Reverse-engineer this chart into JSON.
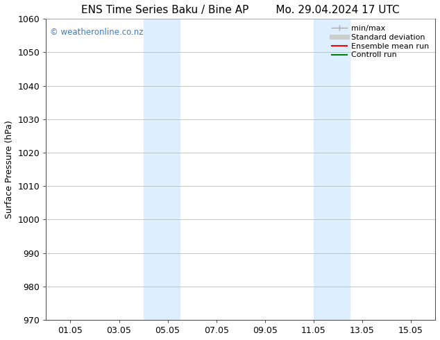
{
  "title": "ENS Time Series Baku / Bine AP        Mo. 29.04.2024 17 UTC",
  "ylabel": "Surface Pressure (hPa)",
  "ylim": [
    970,
    1060
  ],
  "yticks": [
    970,
    980,
    990,
    1000,
    1010,
    1020,
    1030,
    1040,
    1050,
    1060
  ],
  "xtick_labels": [
    "01.05",
    "03.05",
    "05.05",
    "07.05",
    "09.05",
    "11.05",
    "13.05",
    "15.05"
  ],
  "xtick_positions": [
    1,
    3,
    5,
    7,
    9,
    11,
    13,
    15
  ],
  "xlim": [
    0,
    16
  ],
  "shaded_regions": [
    {
      "xmin": 4.0,
      "xmax": 5.5,
      "color": "#ddeeff"
    },
    {
      "xmin": 11.0,
      "xmax": 12.5,
      "color": "#ddeeff"
    }
  ],
  "watermark": "© weatheronline.co.nz",
  "watermark_color": "#3a7dc9",
  "legend_entries": [
    {
      "label": "min/max",
      "color": "#aaaaaa",
      "lw": 1.0
    },
    {
      "label": "Standard deviation",
      "color": "#cccccc",
      "lw": 5
    },
    {
      "label": "Ensemble mean run",
      "color": "red",
      "lw": 1.5
    },
    {
      "label": "Controll run",
      "color": "green",
      "lw": 1.5
    }
  ],
  "bg_color": "#ffffff",
  "grid_color": "#bbbbbb",
  "title_fontsize": 11,
  "label_fontsize": 9,
  "tick_fontsize": 9,
  "legend_fontsize": 8
}
